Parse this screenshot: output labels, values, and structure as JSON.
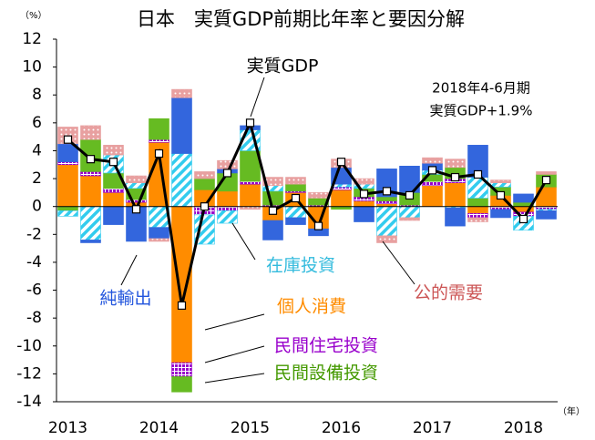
{
  "chart_data": {
    "type": "bar",
    "stacked": true,
    "title": "日本　実質GDP前期比年率と要因分解",
    "y_unit": "（%）",
    "x_unit": "（年）",
    "annotations": [
      "2018年4-6月期",
      "実質GDP+1.9%"
    ],
    "categories": [
      "2013",
      null,
      null,
      null,
      "2014",
      null,
      null,
      null,
      "2015",
      null,
      null,
      null,
      "2016",
      null,
      null,
      null,
      "2017",
      null,
      null,
      null,
      "2018",
      null
    ],
    "ylim": [
      -14,
      12
    ],
    "yticks": [
      -14,
      -12,
      -10,
      -8,
      -6,
      -4,
      -2,
      0,
      2,
      4,
      6,
      8,
      10,
      12
    ],
    "series": [
      {
        "name": "個人消費",
        "color": "#ff8c00",
        "values": [
          3.0,
          2.2,
          1.0,
          0.3,
          4.6,
          -11.2,
          1.2,
          1.1,
          1.6,
          -1.0,
          1.0,
          -1.6,
          1.2,
          0.4,
          0.2,
          0.0,
          1.5,
          1.7,
          -0.5,
          0.8,
          -0.4,
          1.4
        ]
      },
      {
        "name": "民間住宅投資",
        "color": "#9900cc",
        "values": [
          0.2,
          0.3,
          0.3,
          0.2,
          0.2,
          -1.0,
          -0.6,
          -0.3,
          0.2,
          0.1,
          0.1,
          0.1,
          0.2,
          0.3,
          0.2,
          0.1,
          0.3,
          0.3,
          -0.3,
          -0.2,
          -0.3,
          -0.2
        ]
      },
      {
        "name": "民間設備投資",
        "color": "#66bb22",
        "values": [
          -0.3,
          2.3,
          1.1,
          0.8,
          1.5,
          -1.1,
          0.8,
          1.3,
          2.2,
          1.0,
          0.5,
          0.5,
          -0.2,
          0.6,
          0.3,
          0.9,
          0.5,
          0.8,
          0.6,
          0.6,
          0.3,
          0.9
        ]
      },
      {
        "name": "在庫投資",
        "color": "#33ccee",
        "values": [
          -0.4,
          -2.4,
          1.3,
          0.4,
          -1.5,
          3.8,
          -2.1,
          -0.9,
          1.5,
          0.4,
          -0.8,
          0.0,
          0.2,
          0.3,
          -2.1,
          -0.8,
          0.3,
          -0.1,
          1.5,
          0.3,
          -1.0,
          -0.1
        ]
      },
      {
        "name": "純輸出",
        "color": "#3366dd",
        "values": [
          1.3,
          -0.2,
          -1.3,
          -2.5,
          -0.8,
          4.0,
          0.0,
          0.3,
          0.3,
          -1.4,
          -0.5,
          -0.5,
          1.2,
          -1.1,
          2.0,
          1.9,
          0.5,
          -1.3,
          2.3,
          -0.6,
          0.6,
          -0.6
        ]
      },
      {
        "name": "公的需要",
        "color": "#e8a0a0",
        "values": [
          1.2,
          1.0,
          0.7,
          0.5,
          -0.2,
          0.6,
          0.5,
          0.6,
          -0.2,
          0.6,
          0.5,
          0.4,
          0.6,
          0.4,
          -0.5,
          -0.2,
          0.4,
          0.6,
          -0.3,
          0.2,
          0.0,
          0.2
        ]
      },
      {
        "name": "実質GDP",
        "color": "#000000",
        "type": "line",
        "values": [
          4.8,
          3.4,
          3.2,
          -0.2,
          3.8,
          -7.1,
          0.0,
          2.4,
          6.0,
          -0.3,
          0.6,
          -1.4,
          3.2,
          0.9,
          1.1,
          0.8,
          2.6,
          2.1,
          2.3,
          0.8,
          -0.9,
          1.9
        ]
      }
    ]
  }
}
